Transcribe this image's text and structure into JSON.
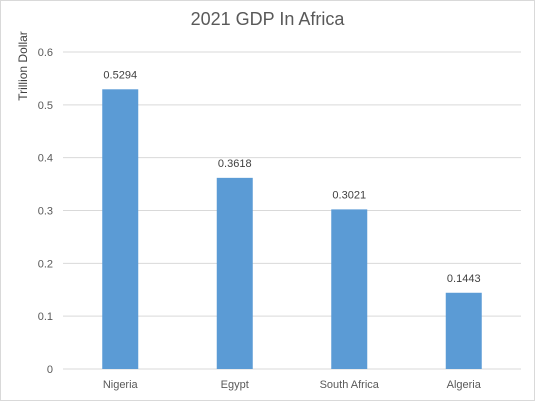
{
  "chart_data": {
    "type": "bar",
    "title": "2021 GDP In Africa",
    "xlabel": "",
    "ylabel": "Trillion Dollar",
    "categories": [
      "Nigeria",
      "Egypt",
      "South Africa",
      "Algeria"
    ],
    "values": [
      0.5294,
      0.3618,
      0.3021,
      0.1443
    ],
    "data_labels": [
      "0.5294",
      "0.3618",
      "0.3021",
      "0.1443"
    ],
    "ylim": [
      0,
      0.6
    ],
    "yticks": [
      "0",
      "0.1",
      "0.2",
      "0.3",
      "0.4",
      "0.5",
      "0.6"
    ],
    "grid": true,
    "legend": "none",
    "bar_color": "#5b9bd5"
  }
}
